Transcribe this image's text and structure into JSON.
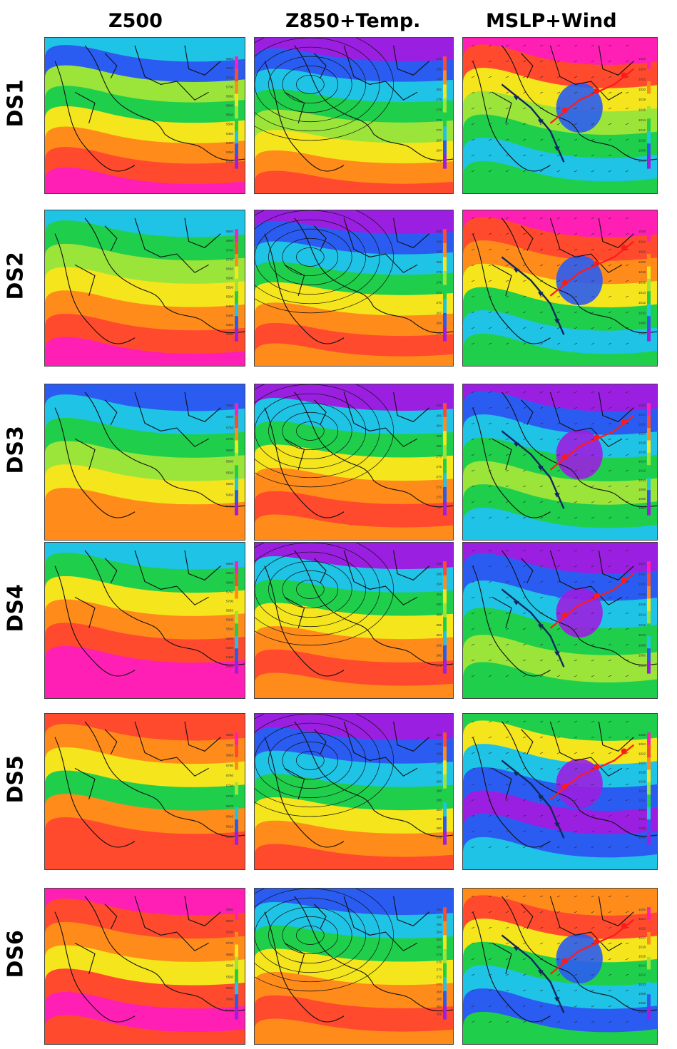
{
  "columns": [
    {
      "key": "z500",
      "title": "Z500"
    },
    {
      "key": "z850",
      "title": "Z850+Temp."
    },
    {
      "key": "mslp",
      "title": "MSLP+Wind"
    }
  ],
  "rows": [
    {
      "label": "DS1",
      "z500_scale": [
        "5850",
        "5800",
        "5750",
        "5700",
        "5650",
        "5600",
        "5550",
        "5500",
        "5450",
        "5400",
        "5350",
        "5300"
      ],
      "z850_scale": [
        "291",
        "288",
        "285",
        "282",
        "279",
        "276",
        "273",
        "270",
        "267",
        "264",
        "261"
      ],
      "mslp_scale": [
        "1026",
        "1024",
        "1022",
        "1020",
        "1018",
        "1016",
        "1014",
        "1012",
        "1010",
        "1008",
        "1006"
      ]
    },
    {
      "label": "DS2",
      "z500_scale": [
        "5850",
        "5800",
        "5750",
        "5700",
        "5650",
        "5600",
        "5550",
        "5500",
        "5450",
        "5400",
        "5350",
        "5300"
      ],
      "z850_scale": [
        "291",
        "288",
        "285",
        "282",
        "279",
        "276",
        "273",
        "270",
        "267",
        "264",
        "261"
      ],
      "mslp_scale": [
        "1026",
        "1024",
        "1022",
        "1020",
        "1018",
        "1016",
        "1014",
        "1012",
        "1010",
        "1008",
        "1006"
      ]
    },
    {
      "label": "DS3",
      "z500_scale": [
        "5850",
        "5800",
        "5750",
        "5700",
        "5650",
        "5600",
        "5550",
        "5500",
        "5450",
        "5400"
      ],
      "z850_scale": [
        "288",
        "286",
        "284",
        "282",
        "280",
        "278",
        "276",
        "274",
        "272",
        "270",
        "268"
      ],
      "mslp_scale": [
        "1026",
        "1024",
        "1022",
        "1020",
        "1018",
        "1016",
        "1014",
        "1012",
        "1010",
        "1008",
        "1006",
        "1004"
      ]
    },
    {
      "label": "DS4",
      "z500_scale": [
        "5900",
        "5850",
        "5800",
        "5750",
        "5700",
        "5650",
        "5600",
        "5550",
        "5500",
        "5450",
        "5400",
        "5350"
      ],
      "z850_scale": [
        "298",
        "296",
        "294",
        "292",
        "290",
        "288",
        "286",
        "284",
        "282",
        "280",
        "278"
      ],
      "mslp_scale": [
        "1024",
        "1022",
        "1020",
        "1018",
        "1016",
        "1014",
        "1012",
        "1010",
        "1008",
        "1006",
        "1004"
      ]
    },
    {
      "label": "DS5",
      "z500_scale": [
        "5880",
        "5850",
        "5820",
        "5790",
        "5760",
        "5730",
        "5700",
        "5670",
        "5640",
        "5610",
        "5580"
      ],
      "z850_scale": [
        "300",
        "298",
        "296",
        "294",
        "292",
        "290",
        "288",
        "286",
        "284",
        "282",
        "280",
        "278"
      ],
      "mslp_scale": [
        "1026",
        "1024",
        "1022",
        "1020",
        "1018",
        "1016",
        "1014",
        "1012",
        "1010",
        "1008",
        "1006",
        "1004"
      ]
    },
    {
      "label": "DS6",
      "z500_scale": [
        "5850",
        "5800",
        "5750",
        "5700",
        "5650",
        "5600",
        "5550",
        "5500",
        "5450",
        "5400"
      ],
      "z850_scale": [
        "290",
        "288",
        "286",
        "284",
        "282",
        "280",
        "278",
        "276",
        "274",
        "272",
        "270",
        "268",
        "266",
        "264",
        "262"
      ],
      "mslp_scale": [
        "1026",
        "1024",
        "1022",
        "1020",
        "1018",
        "1016",
        "1014",
        "1012",
        "1010",
        "1008",
        "1006",
        "1004"
      ]
    }
  ],
  "colors": {
    "magenta": "#ff1fb4",
    "red": "#ff4a2e",
    "orange": "#ff8c1a",
    "yellow": "#f5e51c",
    "lightgreen": "#9be53a",
    "green": "#1fcf4c",
    "cyan": "#1fc3e6",
    "blue": "#2b5cf2",
    "purple": "#9a1fe0",
    "front_warm": "#ff1a1a",
    "front_cold": "#10285e"
  }
}
